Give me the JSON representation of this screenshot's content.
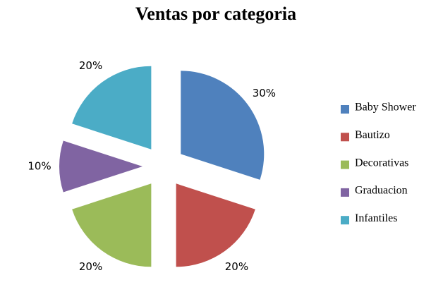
{
  "chart_data": {
    "type": "pie",
    "title": "Ventas por categoria",
    "categories": [
      "Baby Shower",
      "Bautizo",
      "Decorativas",
      "Graduacion",
      "Infantiles"
    ],
    "values": [
      30,
      20,
      20,
      10,
      20
    ],
    "value_labels": [
      "30%",
      "20%",
      "20%",
      "10%",
      "20%"
    ],
    "colors": [
      "#4f81bd",
      "#c0504d",
      "#9bbb59",
      "#8064a2",
      "#4bacc6"
    ],
    "legend": "right"
  }
}
